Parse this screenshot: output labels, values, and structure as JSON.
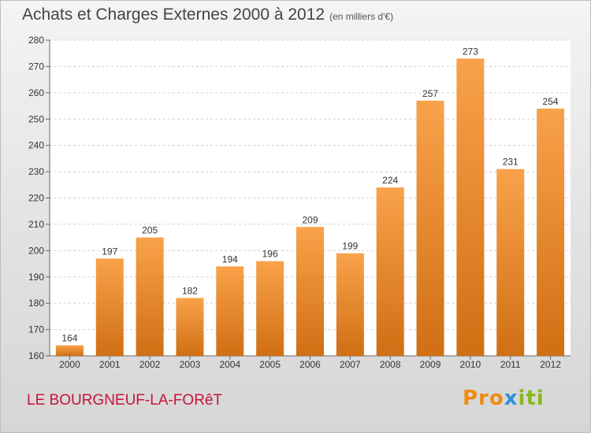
{
  "header": {
    "title": "Achats et Charges Externes 2000 à 2012",
    "unit": "(en milliers d'€)"
  },
  "footer": {
    "town": "LE BOURGNEUF-LA-FORêT",
    "logo": {
      "part1": "Pro",
      "part2": "x",
      "part3": "iti"
    }
  },
  "colors": {
    "bar_top": "#f9a24a",
    "bar_bottom": "#d06f14",
    "town": "#c4143c"
  },
  "chart_data": {
    "type": "bar",
    "title": "Achats et Charges Externes 2000 à 2012",
    "subtitle": "(en milliers d'€)",
    "xlabel": "",
    "ylabel": "",
    "categories": [
      "2000",
      "2001",
      "2002",
      "2003",
      "2004",
      "2005",
      "2006",
      "2007",
      "2008",
      "2009",
      "2010",
      "2011",
      "2012"
    ],
    "values": [
      164,
      197,
      205,
      182,
      194,
      196,
      209,
      199,
      224,
      257,
      273,
      231,
      254
    ],
    "ylim": [
      160,
      280
    ],
    "yticks": [
      160,
      170,
      180,
      190,
      200,
      210,
      220,
      230,
      240,
      250,
      260,
      270,
      280
    ],
    "grid": true,
    "data_labels": true
  }
}
